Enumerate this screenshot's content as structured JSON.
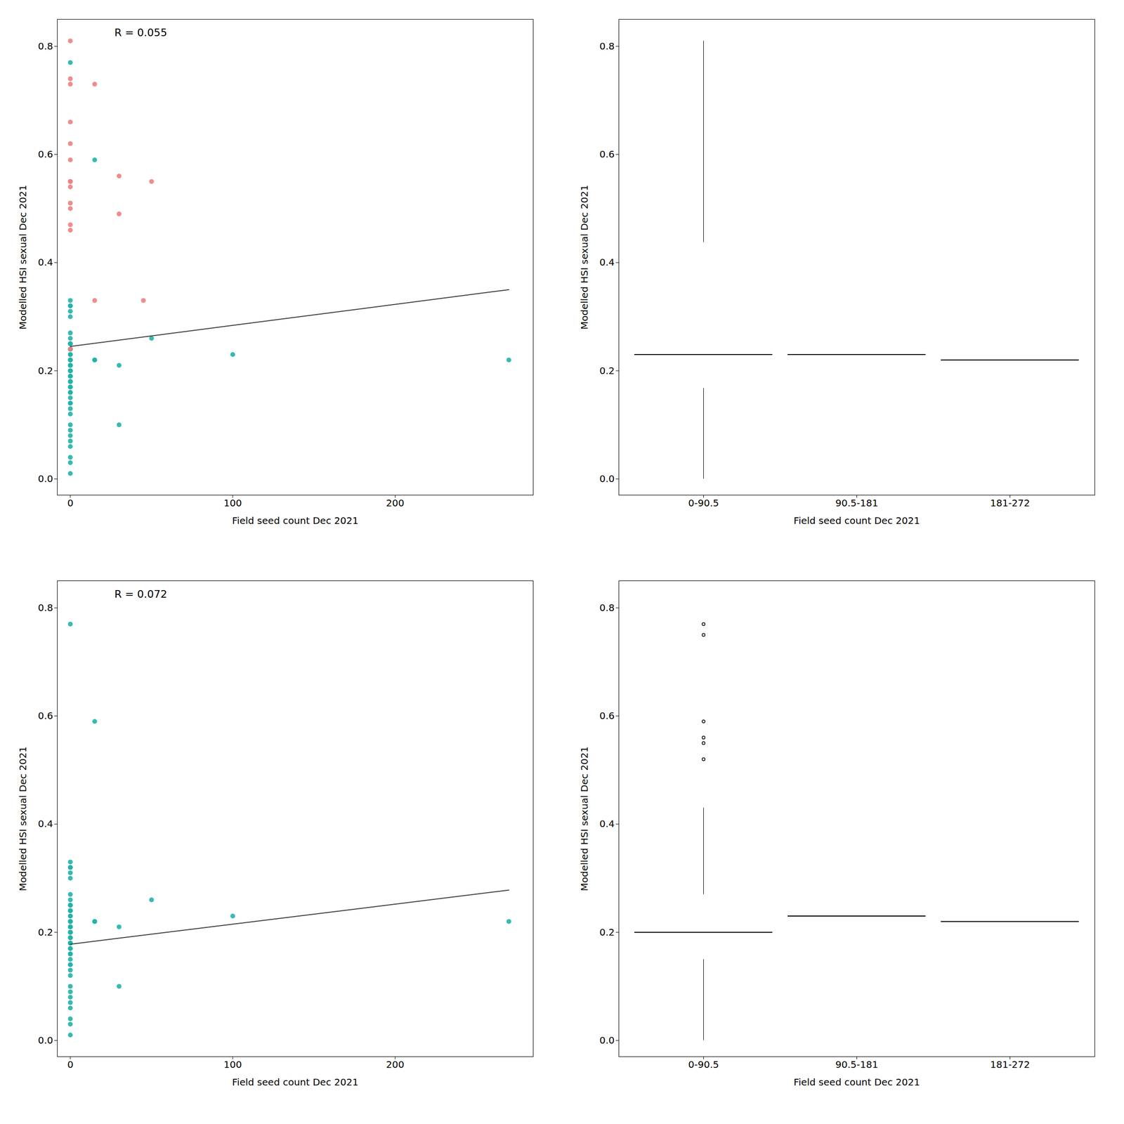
{
  "chart_data": [
    {
      "type": "scatter",
      "xlabel": "Field seed count Dec 2021",
      "ylabel": "Modelled HSI sexual Dec 2021",
      "annotation": "R = 0.055",
      "xlim": [
        -8,
        285
      ],
      "xticks": [
        0,
        100,
        200
      ],
      "ylim": [
        -0.03,
        0.85
      ],
      "yticks": [
        {
          "value": 0.0,
          "label": "0.0"
        },
        0.2,
        0.4,
        0.6,
        0.8
      ],
      "grid": false,
      "series": [
        {
          "color": "#20B2AA",
          "x": [
            0,
            0,
            0,
            0,
            0,
            0,
            0,
            0,
            0,
            0,
            0,
            0,
            0,
            0,
            0,
            0,
            0,
            0,
            0,
            0,
            0,
            0,
            0,
            0,
            0,
            0,
            0,
            0,
            0,
            0,
            0,
            0,
            0,
            0,
            0,
            0,
            0,
            0,
            0,
            0,
            0,
            0,
            0,
            0,
            0,
            0,
            0,
            0,
            15,
            15,
            15,
            30,
            30,
            50,
            100,
            270
          ],
          "values": [
            0.77,
            0.33,
            0.32,
            0.32,
            0.31,
            0.3,
            0.27,
            0.26,
            0.25,
            0.25,
            0.25,
            0.24,
            0.24,
            0.24,
            0.23,
            0.23,
            0.22,
            0.22,
            0.22,
            0.21,
            0.21,
            0.21,
            0.2,
            0.2,
            0.2,
            0.19,
            0.19,
            0.19,
            0.18,
            0.18,
            0.18,
            0.17,
            0.17,
            0.16,
            0.16,
            0.15,
            0.14,
            0.14,
            0.13,
            0.12,
            0.1,
            0.09,
            0.08,
            0.07,
            0.06,
            0.04,
            0.03,
            0.01,
            0.22,
            0.22,
            0.59,
            0.1,
            0.21,
            0.26,
            0.23,
            0.22
          ]
        },
        {
          "color": "#F08080",
          "x": [
            0,
            0,
            0,
            0,
            0,
            0,
            0,
            0,
            0,
            0,
            0,
            0,
            0,
            0,
            15,
            15,
            30,
            30,
            45,
            50
          ],
          "values": [
            0.81,
            0.74,
            0.73,
            0.66,
            0.62,
            0.59,
            0.55,
            0.55,
            0.54,
            0.51,
            0.5,
            0.47,
            0.46,
            0.24,
            0.73,
            0.33,
            0.49,
            0.56,
            0.33,
            0.55
          ]
        },
        {
          "type": "line",
          "color": "#404040",
          "x": [
            0,
            270
          ],
          "values": [
            0.245,
            0.35
          ]
        }
      ]
    },
    {
      "type": "box",
      "xlabel": "Field seed count Dec 2021",
      "ylabel": "Modelled HSI sexual Dec 2021",
      "categories": [
        "0-90.5",
        "90.5-181",
        "181-272"
      ],
      "ylim": [
        -0.03,
        0.85
      ],
      "yticks": [
        {
          "value": 0.0,
          "label": "0.0"
        },
        0.2,
        0.4,
        0.6,
        0.8
      ],
      "grid": false,
      "color": "black",
      "values": [
        [
          0.0,
          0.01,
          0.03,
          0.04,
          0.06,
          0.07,
          0.08,
          0.09,
          0.1,
          0.12,
          0.13,
          0.14,
          0.14,
          0.15,
          0.16,
          0.16,
          0.17,
          0.17,
          0.18,
          0.18,
          0.18,
          0.19,
          0.19,
          0.19,
          0.2,
          0.2,
          0.2,
          0.21,
          0.21,
          0.22,
          0.22,
          0.23,
          0.23,
          0.24,
          0.24,
          0.25,
          0.25,
          0.26,
          0.26,
          0.27,
          0.3,
          0.31,
          0.32,
          0.32,
          0.33,
          0.33,
          0.33,
          0.43,
          0.46,
          0.47,
          0.5,
          0.51,
          0.54,
          0.55,
          0.55,
          0.56,
          0.59,
          0.62,
          0.66,
          0.73,
          0.73,
          0.74,
          0.77,
          0.81
        ],
        [
          0.23,
          0.23
        ],
        [
          0.22
        ]
      ]
    },
    {
      "type": "scatter",
      "xlabel": "Field seed count Dec 2021",
      "ylabel": "Modelled HSI sexual Dec 2021",
      "annotation": "R = 0.072",
      "xlim": [
        -8,
        285
      ],
      "xticks": [
        0,
        100,
        200
      ],
      "ylim": [
        -0.03,
        0.85
      ],
      "yticks": [
        {
          "value": 0.0,
          "label": "0.0"
        },
        0.2,
        0.4,
        0.6,
        0.8
      ],
      "grid": false,
      "series": [
        {
          "color": "#20B2AA",
          "x": [
            0,
            0,
            0,
            0,
            0,
            0,
            0,
            0,
            0,
            0,
            0,
            0,
            0,
            0,
            0,
            0,
            0,
            0,
            0,
            0,
            0,
            0,
            0,
            0,
            0,
            0,
            0,
            0,
            0,
            0,
            0,
            0,
            0,
            0,
            0,
            0,
            0,
            0,
            0,
            0,
            0,
            0,
            0,
            0,
            0,
            0,
            0,
            0,
            15,
            15,
            15,
            30,
            30,
            50,
            100,
            270
          ],
          "values": [
            0.77,
            0.33,
            0.32,
            0.32,
            0.31,
            0.3,
            0.27,
            0.26,
            0.25,
            0.25,
            0.25,
            0.24,
            0.24,
            0.24,
            0.23,
            0.23,
            0.22,
            0.22,
            0.22,
            0.21,
            0.21,
            0.21,
            0.2,
            0.2,
            0.2,
            0.19,
            0.19,
            0.19,
            0.18,
            0.18,
            0.18,
            0.17,
            0.17,
            0.16,
            0.16,
            0.15,
            0.14,
            0.14,
            0.13,
            0.12,
            0.1,
            0.09,
            0.08,
            0.07,
            0.06,
            0.04,
            0.03,
            0.01,
            0.22,
            0.22,
            0.59,
            0.1,
            0.21,
            0.26,
            0.23,
            0.22
          ]
        },
        {
          "type": "line",
          "color": "#404040",
          "x": [
            0,
            270
          ],
          "values": [
            0.178,
            0.278
          ]
        }
      ]
    },
    {
      "type": "box",
      "xlabel": "Field seed count Dec 2021",
      "ylabel": "Modelled HSI sexual Dec 2021",
      "categories": [
        "0-90.5",
        "90.5-181",
        "181-272"
      ],
      "ylim": [
        -0.03,
        0.85
      ],
      "yticks": [
        {
          "value": 0.0,
          "label": "0.0"
        },
        0.2,
        0.4,
        0.6,
        0.8
      ],
      "grid": false,
      "color": "black",
      "values": [
        [
          0.0,
          0.01,
          0.03,
          0.04,
          0.06,
          0.07,
          0.08,
          0.09,
          0.1,
          0.12,
          0.13,
          0.14,
          0.14,
          0.15,
          0.16,
          0.16,
          0.17,
          0.17,
          0.18,
          0.18,
          0.18,
          0.19,
          0.19,
          0.19,
          0.2,
          0.2,
          0.2,
          0.21,
          0.21,
          0.22,
          0.22,
          0.23,
          0.23,
          0.24,
          0.24,
          0.25,
          0.25,
          0.26,
          0.26,
          0.27,
          0.3,
          0.31,
          0.32,
          0.32,
          0.33,
          0.33,
          0.43,
          0.52,
          0.55,
          0.56,
          0.59,
          0.75,
          0.77
        ],
        [
          0.23,
          0.23
        ],
        [
          0.22
        ]
      ]
    }
  ]
}
